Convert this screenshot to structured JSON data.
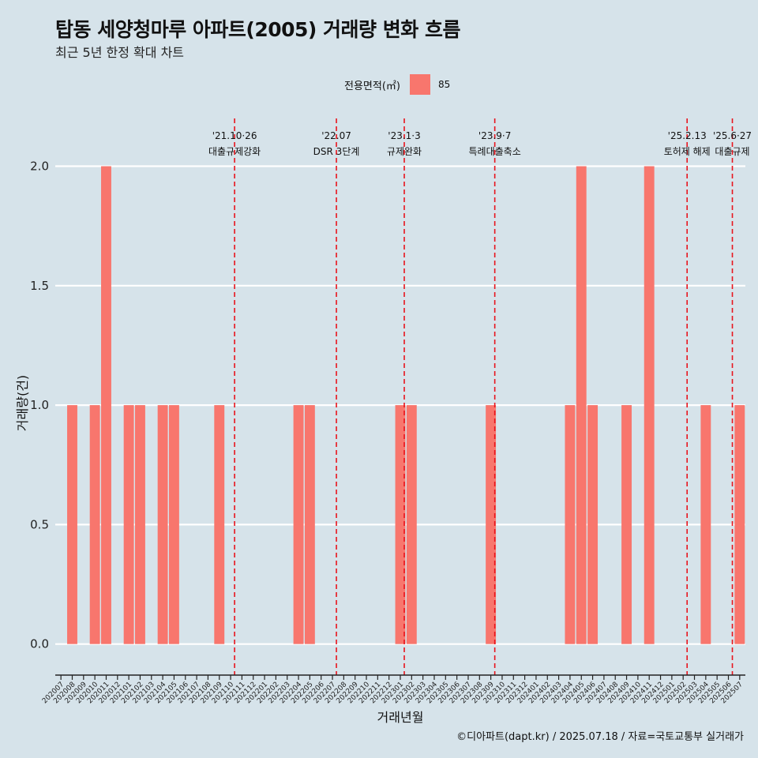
{
  "title": "탑동 세양청마루 아파트(2005) 거래량 변화 흐름",
  "subtitle": "최근 5년 한정 확대 차트",
  "legend": {
    "title": "전용면적(㎡)",
    "items": [
      {
        "label": "85",
        "color": "#f8766d"
      }
    ]
  },
  "caption": "©디아파트(dapt.kr) / 2025.07.18 / 자료=국토교통부 실거래가",
  "chart_data": {
    "type": "bar",
    "xlabel": "거래년월",
    "ylabel": "거래량(건)",
    "ylim": [
      -0.13,
      2.2
    ],
    "yticks": [
      0.0,
      0.5,
      1.0,
      1.5,
      2.0
    ],
    "ytick_labels": [
      "0.0",
      "0.5",
      "1.0",
      "1.5",
      "2.0"
    ],
    "grid": true,
    "bar_color": "#f8766d",
    "categories": [
      "202007",
      "202008",
      "202009",
      "202010",
      "202011",
      "202012",
      "202101",
      "202102",
      "202103",
      "202104",
      "202105",
      "202106",
      "202107",
      "202108",
      "202109",
      "202110",
      "202111",
      "202112",
      "202201",
      "202202",
      "202203",
      "202204",
      "202205",
      "202206",
      "202207",
      "202208",
      "202209",
      "202210",
      "202211",
      "202212",
      "202301",
      "202302",
      "202303",
      "202304",
      "202305",
      "202306",
      "202307",
      "202308",
      "202309",
      "202310",
      "202311",
      "202312",
      "202401",
      "202402",
      "202403",
      "202404",
      "202405",
      "202406",
      "202407",
      "202408",
      "202409",
      "202410",
      "202411",
      "202412",
      "202501",
      "202502",
      "202503",
      "202504",
      "202505",
      "202506",
      "202507"
    ],
    "series": [
      {
        "name": "85",
        "values": [
          0,
          1,
          0,
          1,
          2,
          0,
          1,
          1,
          0,
          1,
          1,
          0,
          0,
          0,
          1,
          0,
          0,
          0,
          0,
          0,
          0,
          1,
          1,
          0,
          0,
          0,
          0,
          0,
          0,
          0,
          1,
          1,
          0,
          0,
          0,
          0,
          0,
          0,
          1,
          0,
          0,
          0,
          0,
          0,
          0,
          1,
          2,
          1,
          0,
          0,
          1,
          0,
          2,
          0,
          0,
          0,
          0,
          1,
          0,
          0,
          1
        ]
      }
    ],
    "annotations": [
      {
        "x": "202110",
        "date": "'21.10·26",
        "label": "대출규제강화",
        "position": 15.35
      },
      {
        "x": "202207",
        "date": "'22.07",
        "label": "DSR 3단계",
        "position": 24.35
      },
      {
        "x": "202301",
        "date": "'23.1·3",
        "label": "규제완화",
        "position": 30.35
      },
      {
        "x": "202309",
        "date": "'23.9·7",
        "label": "특례대출축소",
        "position": 38.35
      },
      {
        "x": "202502",
        "date": "'25.2.13",
        "label": "토허제 해제",
        "position": 55.35
      },
      {
        "x": "202506",
        "date": "'25.6·27",
        "label": "대출규제",
        "position": 59.35
      }
    ]
  }
}
